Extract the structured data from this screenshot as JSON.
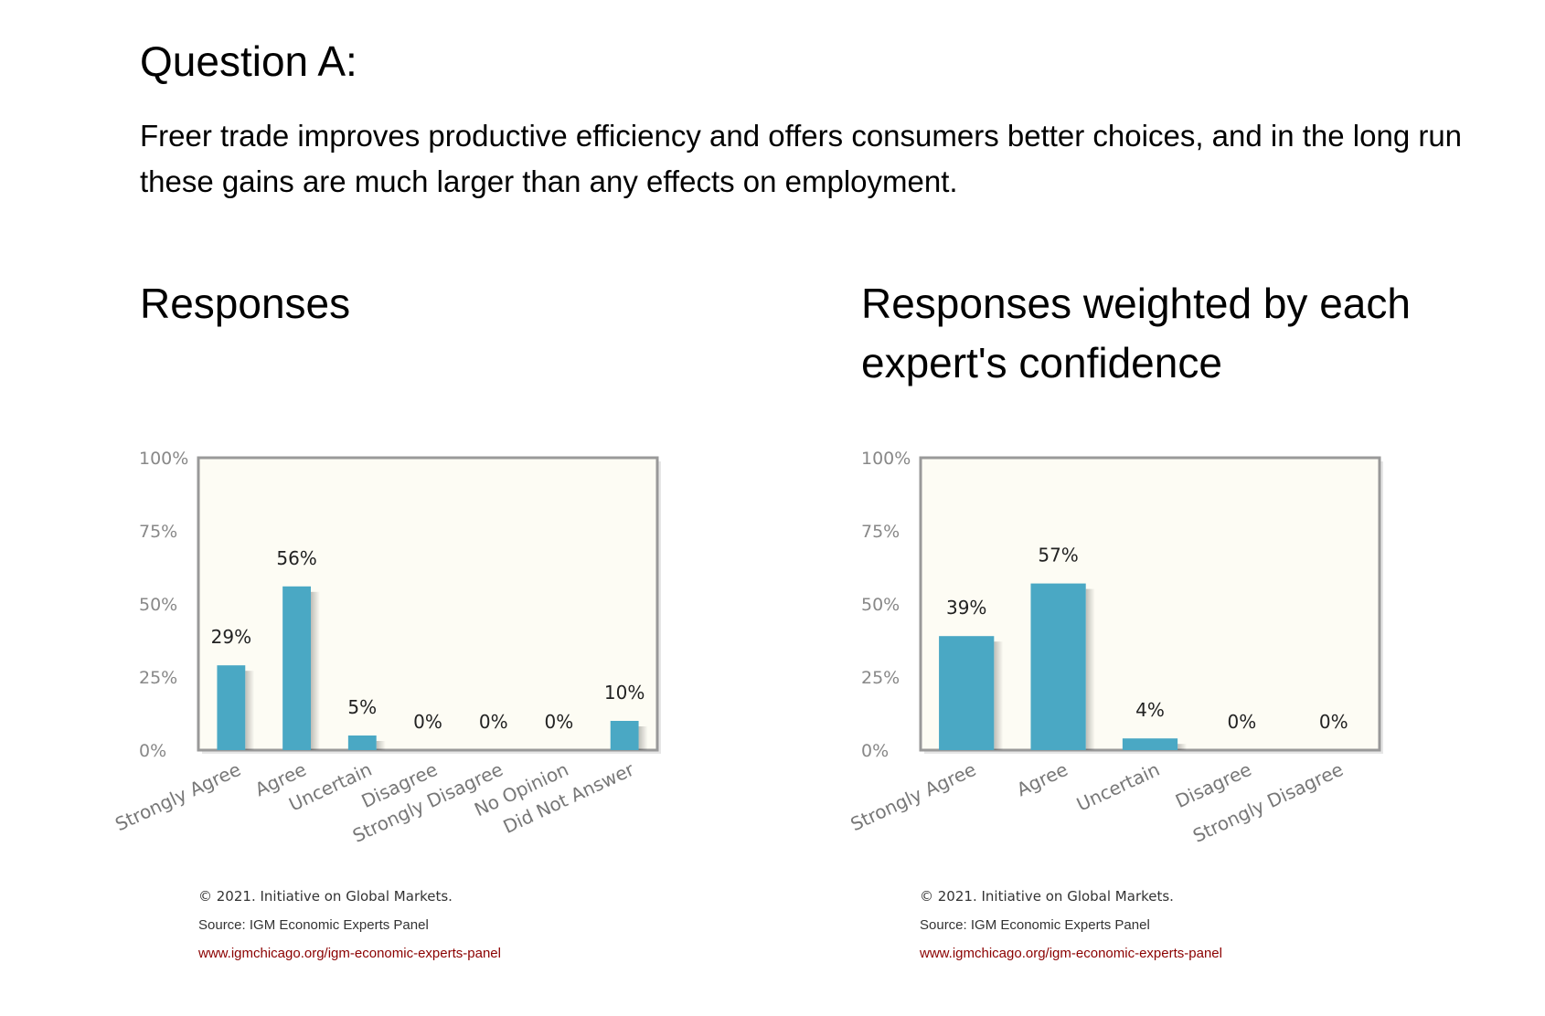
{
  "question": {
    "title": "Question A:",
    "text": "Freer trade improves productive efficiency and offers consumers better choices, and in the long run these gains are much larger than any effects on employment."
  },
  "sections": [
    {
      "title": "Responses"
    },
    {
      "title": "Responses weighted by each expert's confidence"
    }
  ],
  "credits": {
    "copyright": "© 2021. Initiative on Global Markets.",
    "source": "Source: IGM Economic Experts Panel",
    "url": "www.igmchicago.org/igm-economic-experts-panel"
  },
  "colors": {
    "bar": "#4aa8c4",
    "plot_bg": "#fdfcf4",
    "frame": "#999999",
    "url": "#8b0000"
  },
  "chart_data": [
    {
      "type": "bar",
      "categories": [
        "Strongly Agree",
        "Agree",
        "Uncertain",
        "Disagree",
        "Strongly Disagree",
        "No Opinion",
        "Did Not Answer"
      ],
      "values": [
        29,
        56,
        5,
        0,
        0,
        0,
        10
      ],
      "value_labels": [
        "29%",
        "56%",
        "5%",
        "0%",
        "0%",
        "0%",
        "10%"
      ],
      "yticks": [
        "0%",
        "25%",
        "50%",
        "75%",
        "100%"
      ],
      "ylim": [
        0,
        100
      ],
      "grid": false
    },
    {
      "type": "bar",
      "categories": [
        "Strongly Agree",
        "Agree",
        "Uncertain",
        "Disagree",
        "Strongly Disagree"
      ],
      "values": [
        39,
        57,
        4,
        0,
        0
      ],
      "value_labels": [
        "39%",
        "57%",
        "4%",
        "0%",
        "0%"
      ],
      "yticks": [
        "0%",
        "25%",
        "50%",
        "75%",
        "100%"
      ],
      "ylim": [
        0,
        100
      ],
      "grid": false
    }
  ]
}
